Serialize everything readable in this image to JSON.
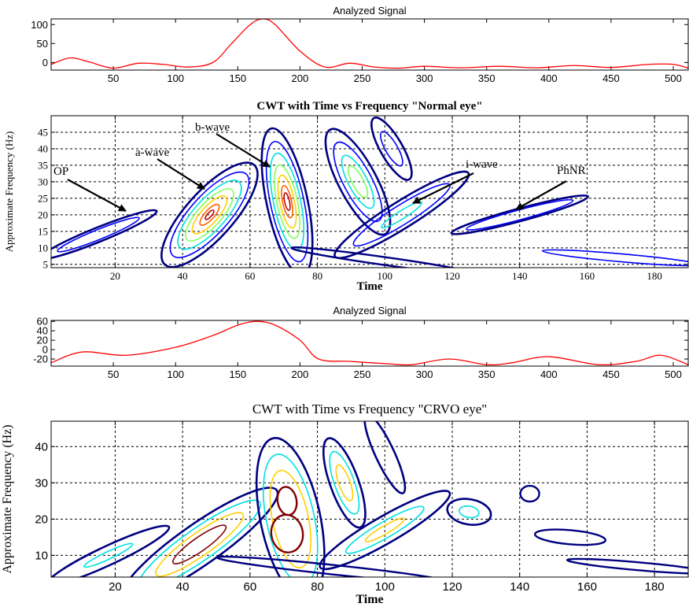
{
  "colors": {
    "signal": "#ff0000",
    "levels": [
      "#000080",
      "#0000ff",
      "#00b0ff",
      "#00e0e0",
      "#80ff60",
      "#ffd000",
      "#ff6000",
      "#c00000",
      "#800000"
    ],
    "grid": "#000000",
    "annotation": "#000000"
  },
  "chart_data": [
    {
      "type": "line",
      "title": "Analyzed Signal",
      "xlabel": "",
      "ylabel": "",
      "xlim": [
        0,
        512
      ],
      "ylim": [
        -20,
        115
      ],
      "xticks": [
        50,
        100,
        150,
        200,
        250,
        300,
        350,
        400,
        450,
        500
      ],
      "yticks": [
        0,
        50,
        100
      ],
      "x": [
        0,
        15,
        30,
        50,
        70,
        90,
        110,
        130,
        145,
        160,
        170,
        180,
        200,
        220,
        240,
        260,
        280,
        300,
        330,
        360,
        390,
        420,
        450,
        480,
        500,
        512
      ],
      "values": [
        -5,
        12,
        2,
        -15,
        -2,
        -5,
        -12,
        0,
        50,
        100,
        115,
        100,
        30,
        -12,
        -2,
        -12,
        -15,
        -10,
        -14,
        -10,
        -14,
        -8,
        -13,
        -5,
        -5,
        -15
      ]
    },
    {
      "type": "heatmap",
      "subtype": "contour",
      "title": "CWT with Time vs Frequency \"Normal eye\"",
      "xlabel": "Time",
      "ylabel": "Approximate Frequency (Hz)",
      "xlim": [
        1,
        190
      ],
      "ylim": [
        4,
        50
      ],
      "xticks": [
        20,
        40,
        60,
        80,
        100,
        120,
        140,
        160,
        180
      ],
      "yticks": [
        5,
        10,
        15,
        20,
        25,
        30,
        35,
        40,
        45
      ],
      "grid": true,
      "annotations": [
        "OP",
        "a-wave",
        "b-wave",
        "i-wave",
        "PhNR"
      ]
    },
    {
      "type": "line",
      "title": "Analyzed Signal",
      "xlabel": "",
      "ylabel": "",
      "xlim": [
        0,
        512
      ],
      "ylim": [
        -35,
        62
      ],
      "xticks": [
        50,
        100,
        150,
        200,
        250,
        300,
        350,
        400,
        450,
        500
      ],
      "yticks": [
        -20,
        0,
        20,
        40,
        60
      ],
      "x": [
        0,
        25,
        60,
        100,
        130,
        150,
        165,
        180,
        200,
        215,
        240,
        270,
        290,
        320,
        350,
        370,
        400,
        440,
        470,
        490,
        512
      ],
      "values": [
        -28,
        -5,
        -12,
        5,
        30,
        52,
        60,
        52,
        20,
        -20,
        -25,
        -30,
        -32,
        -20,
        -32,
        -28,
        -15,
        -32,
        -25,
        -12,
        -32
      ]
    },
    {
      "type": "heatmap",
      "subtype": "contour",
      "title": "CWT with Time vs Frequency \"CRVO eye\"",
      "xlabel": "Time",
      "ylabel": "Approximate Frequency (Hz)",
      "xlim": [
        1,
        190
      ],
      "ylim": [
        4,
        47
      ],
      "xticks": [
        20,
        40,
        60,
        80,
        100,
        120,
        140,
        160,
        180
      ],
      "yticks": [
        10,
        20,
        30,
        40
      ],
      "grid": true
    }
  ]
}
